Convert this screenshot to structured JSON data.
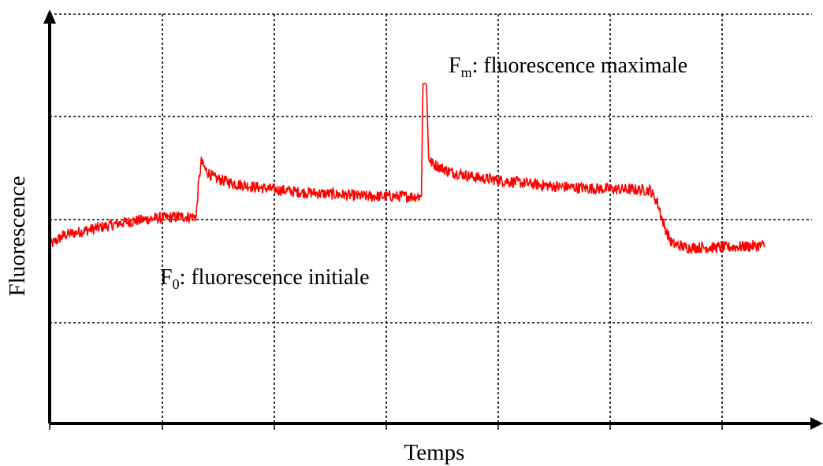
{
  "chart_data": {
    "type": "line",
    "title": "",
    "xlabel": "Temps",
    "ylabel": "Fluorescence",
    "xlim": [
      0,
      1
    ],
    "ylim": [
      0,
      1
    ],
    "grid": true,
    "tick_labels": false,
    "series": [
      {
        "color": "#ff0000",
        "points": [
          [
            0.0,
            0.435
          ],
          [
            0.02,
            0.46
          ],
          [
            0.06,
            0.475
          ],
          [
            0.1,
            0.49
          ],
          [
            0.14,
            0.5
          ],
          [
            0.18,
            0.505
          ],
          [
            0.205,
            0.505
          ],
          [
            0.208,
            0.58
          ],
          [
            0.212,
            0.64
          ],
          [
            0.218,
            0.62
          ],
          [
            0.23,
            0.6
          ],
          [
            0.26,
            0.585
          ],
          [
            0.3,
            0.575
          ],
          [
            0.35,
            0.565
          ],
          [
            0.4,
            0.56
          ],
          [
            0.44,
            0.555
          ],
          [
            0.52,
            0.555
          ],
          [
            0.522,
            0.83
          ],
          [
            0.527,
            0.83
          ],
          [
            0.53,
            0.65
          ],
          [
            0.535,
            0.635
          ],
          [
            0.56,
            0.615
          ],
          [
            0.6,
            0.6
          ],
          [
            0.65,
            0.59
          ],
          [
            0.7,
            0.58
          ],
          [
            0.75,
            0.575
          ],
          [
            0.8,
            0.572
          ],
          [
            0.84,
            0.57
          ],
          [
            0.85,
            0.54
          ],
          [
            0.86,
            0.48
          ],
          [
            0.87,
            0.44
          ],
          [
            0.89,
            0.43
          ],
          [
            0.94,
            0.43
          ],
          [
            1.0,
            0.435
          ]
        ]
      }
    ],
    "annotations": [
      {
        "base": "F",
        "sub": "m",
        "text": ": fluorescence maximale"
      },
      {
        "base": "F",
        "sub": "0",
        "text": ": fluorescence initiale"
      }
    ]
  }
}
